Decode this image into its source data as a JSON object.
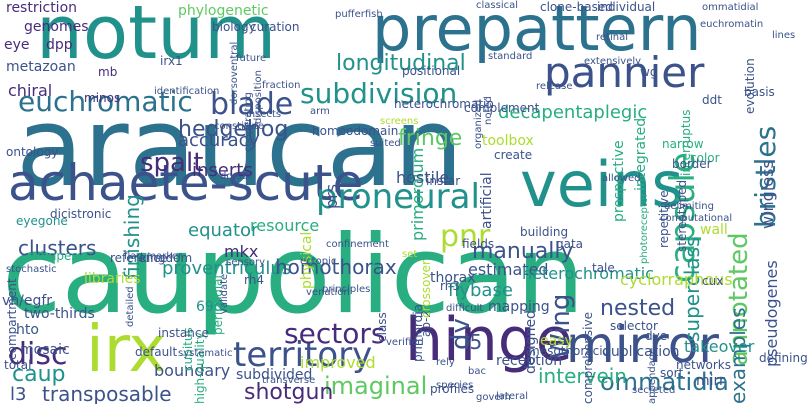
{
  "colors": {
    "purple_dark": "#440154",
    "purple": "#472c7a",
    "indigo": "#3b528b",
    "blue": "#2c728e",
    "teal": "#21918c",
    "green_teal": "#28ae80",
    "green": "#5ec962",
    "lime": "#addc30",
    "yellow": "#fde725"
  },
  "words": [
    {
      "text": "araucan",
      "color": "#2c728e",
      "r": 0
    },
    {
      "text": "caupolican",
      "color": "#28ae80",
      "r": 0
    },
    {
      "text": "notum",
      "color": "#21918c",
      "r": 0
    },
    {
      "text": "prepattern",
      "color": "#2c728e",
      "r": 0
    },
    {
      "text": "achaete-scute",
      "color": "#3b528b",
      "r": 0
    },
    {
      "text": "veins",
      "color": "#21918c",
      "r": 0
    },
    {
      "text": "hinge",
      "color": "#472c7a",
      "r": 0
    },
    {
      "text": "mirror",
      "color": "#3b528b",
      "r": 0
    },
    {
      "text": "irx",
      "color": "#addc30",
      "r": 0
    },
    {
      "text": "pannier",
      "color": "#3b528b",
      "r": 0
    },
    {
      "text": "euchromatic",
      "color": "#2c728e",
      "r": 0
    },
    {
      "text": "blade",
      "color": "#3b528b",
      "r": 0
    },
    {
      "text": "subdivision",
      "color": "#21918c",
      "r": 0
    },
    {
      "text": "capsule",
      "color": "#28ae80",
      "r": -90
    },
    {
      "text": "bristles",
      "color": "#2c728e",
      "r": -90
    },
    {
      "text": "annotated",
      "color": "#5ec962",
      "r": -90
    },
    {
      "text": "proneural",
      "color": "#21918c",
      "r": 0
    },
    {
      "text": "territory",
      "color": "#3b528b",
      "r": 0
    },
    {
      "text": "sectors",
      "color": "#472c7a",
      "r": 0
    },
    {
      "text": "disc",
      "color": "#472c7a",
      "r": 0
    },
    {
      "text": "caup",
      "color": "#21918c",
      "r": 0
    },
    {
      "text": "hedgehog",
      "color": "#3b528b",
      "r": 0
    },
    {
      "text": "spalt",
      "color": "#472c7a",
      "r": 0
    },
    {
      "text": "longitudinal",
      "color": "#21918c",
      "r": 0
    },
    {
      "text": "decapentaplegic",
      "color": "#28ae80",
      "r": 0
    },
    {
      "text": "Wing",
      "color": "#3b528b",
      "r": -90
    },
    {
      "text": "pnr",
      "color": "#addc30",
      "r": 0
    },
    {
      "text": "dv",
      "color": "#3b528b",
      "r": -90
    },
    {
      "text": "proventriculus",
      "color": "#21918c",
      "r": 0
    },
    {
      "text": "homothorax",
      "color": "#3b528b",
      "r": 0
    },
    {
      "text": "clusters",
      "color": "#3b528b",
      "r": 0
    },
    {
      "text": "finishing",
      "color": "#21918c",
      "r": -90
    },
    {
      "text": "fringe",
      "color": "#5ec962",
      "r": 0
    },
    {
      "text": "manually",
      "color": "#3b528b",
      "r": 0
    },
    {
      "text": "superclass",
      "color": "#21918c",
      "r": -90
    },
    {
      "text": "ommatidia",
      "color": "#2c728e",
      "r": 0
    },
    {
      "text": "imaginal",
      "color": "#5ec962",
      "r": 0
    },
    {
      "text": "shotgun",
      "color": "#472c7a",
      "r": 0
    },
    {
      "text": "transposable",
      "color": "#3b528b",
      "r": 0
    },
    {
      "text": "intervein",
      "color": "#28ae80",
      "r": 0
    },
    {
      "text": "equator",
      "color": "#21918c",
      "r": 0
    },
    {
      "text": "resource",
      "color": "#28ae80",
      "r": 0
    },
    {
      "text": "accuracy",
      "color": "#3b528b",
      "r": 0
    },
    {
      "text": "inserts",
      "color": "#472c7a",
      "r": 0
    },
    {
      "text": "primordium",
      "color": "#28ae80",
      "r": -90
    },
    {
      "text": "hostile",
      "color": "#3b528b",
      "r": 0
    },
    {
      "text": "nested",
      "color": "#3b528b",
      "r": 0
    },
    {
      "text": "examples",
      "color": "#2c728e",
      "r": -90
    },
    {
      "text": "wingless",
      "color": "#3b528b",
      "r": -90
    },
    {
      "text": "pseudogenes",
      "color": "#3b528b",
      "r": -90
    },
    {
      "text": "takeover",
      "color": "#21918c",
      "r": 0
    },
    {
      "text": "mkx",
      "color": "#472c7a",
      "r": 0
    },
    {
      "text": "l5",
      "color": "#3b528b",
      "r": 0
    },
    {
      "text": "l3",
      "color": "#3b528b",
      "r": 0
    },
    {
      "text": "boundary",
      "color": "#3b528b",
      "r": 0
    },
    {
      "text": "flybase",
      "color": "#21918c",
      "r": 0
    },
    {
      "text": "estimated",
      "color": "#3b528b",
      "r": 0
    },
    {
      "text": "heterochromatic",
      "color": "#21918c",
      "r": 0
    },
    {
      "text": "cyclorraphous",
      "color": "#addc30",
      "r": 0
    },
    {
      "text": "mirr",
      "color": "#3b528b",
      "r": 0
    },
    {
      "text": "subdivided",
      "color": "#3b528b",
      "r": 0
    },
    {
      "text": "improved",
      "color": "#addc30",
      "r": 0
    },
    {
      "text": "mapping",
      "color": "#3b528b",
      "r": 0
    },
    {
      "text": "eye",
      "color": "#472c7a",
      "r": 0
    },
    {
      "text": "dpp",
      "color": "#472c7a",
      "r": 0
    },
    {
      "text": "genomes",
      "color": "#472c7a",
      "r": 0
    },
    {
      "text": "restriction",
      "color": "#472c7a",
      "r": 0
    },
    {
      "text": "phylogenetic",
      "color": "#5ec962",
      "r": 0
    },
    {
      "text": "biology",
      "color": "#3b528b",
      "r": 0
    },
    {
      "text": "curation",
      "color": "#3b528b",
      "r": 0
    },
    {
      "text": "pufferfish",
      "color": "#3b528b",
      "r": 0
    },
    {
      "text": "clone-based",
      "color": "#3b528b",
      "r": 0
    },
    {
      "text": "classical",
      "color": "#3b528b",
      "r": 0
    },
    {
      "text": "individual",
      "color": "#3b528b",
      "r": 0
    },
    {
      "text": "ommatidial",
      "color": "#3b528b",
      "r": 0
    },
    {
      "text": "euchromatin",
      "color": "#3b528b",
      "r": 0
    },
    {
      "text": "metazoan",
      "color": "#3b528b",
      "r": 0
    },
    {
      "text": "chiral",
      "color": "#472c7a",
      "r": 0
    },
    {
      "text": "mb",
      "color": "#472c7a",
      "r": 0
    },
    {
      "text": "ontology",
      "color": "#3b528b",
      "r": 0
    },
    {
      "text": "compartment",
      "color": "#3b528b",
      "r": -90
    },
    {
      "text": "eyegone",
      "color": "#21918c",
      "r": 0
    },
    {
      "text": "dicistronic",
      "color": "#3b528b",
      "r": 0
    },
    {
      "text": "rubripes",
      "color": "#28ae80",
      "r": 0
    },
    {
      "text": "stochastic",
      "color": "#3b528b",
      "r": 0
    },
    {
      "text": "reference",
      "color": "#3b528b",
      "r": 0
    },
    {
      "text": "kingdom",
      "color": "#3b528b",
      "r": 0
    },
    {
      "text": "libraries",
      "color": "#addc30",
      "r": 0
    },
    {
      "text": "rh4",
      "color": "#3b528b",
      "r": 0
    },
    {
      "text": "vn/egfr",
      "color": "#3b528b",
      "r": 0
    },
    {
      "text": "two-thirds",
      "color": "#3b528b",
      "r": 0
    },
    {
      "text": "hto",
      "color": "#3b528b",
      "r": 0
    },
    {
      "text": "mosaic",
      "color": "#3b528b",
      "r": 0
    },
    {
      "text": "total",
      "color": "#3b528b",
      "r": 0
    },
    {
      "text": "69d",
      "color": "#21918c",
      "r": 0
    },
    {
      "text": "cubitus",
      "color": "#28ae80",
      "r": -90
    },
    {
      "text": "high-quality",
      "color": "#28ae80",
      "r": -90
    },
    {
      "text": "default",
      "color": "#3b528b",
      "r": 0
    },
    {
      "text": "prs",
      "color": "#3b528b",
      "r": -90
    },
    {
      "text": "physical",
      "color": "#addc30",
      "r": -90
    },
    {
      "text": "artificial",
      "color": "#3b528b",
      "r": -90
    },
    {
      "text": "thorax",
      "color": "#3b528b",
      "r": 0
    },
    {
      "text": "toolbox",
      "color": "#addc30",
      "r": 0
    },
    {
      "text": "repetitive",
      "color": "#3b528b",
      "r": -90
    },
    {
      "text": "stereotyped",
      "color": "#3b528b",
      "r": -90
    },
    {
      "text": "prospective",
      "color": "#28ae80",
      "r": -90
    },
    {
      "text": "integrated",
      "color": "#28ae80",
      "r": -90
    },
    {
      "text": "interruptus",
      "color": "#28ae80",
      "r": -90
    },
    {
      "text": "color",
      "color": "#28ae80",
      "r": 0
    },
    {
      "text": "narrow",
      "color": "#28ae80",
      "r": 0
    },
    {
      "text": "border",
      "color": "#3b528b",
      "r": 0
    },
    {
      "text": "wall",
      "color": "#addc30",
      "r": 0
    },
    {
      "text": "rh3",
      "color": "#3b528b",
      "r": 0
    },
    {
      "text": "tale",
      "color": "#3b528b",
      "r": 0
    },
    {
      "text": "dve",
      "color": "#3b528b",
      "r": 0
    },
    {
      "text": "reception",
      "color": "#3b528b",
      "r": 0
    },
    {
      "text": "mesothoracic",
      "color": "#3b528b",
      "r": 0
    },
    {
      "text": "duplication",
      "color": "#3b528b",
      "r": 0
    },
    {
      "text": "selector",
      "color": "#3b528b",
      "r": 0
    },
    {
      "text": "easy",
      "color": "#addc30",
      "r": 0
    },
    {
      "text": "comprehensive",
      "color": "#3b528b",
      "r": -90
    },
    {
      "text": "designed",
      "color": "#3b528b",
      "r": -90
    },
    {
      "text": "primordia",
      "color": "#3b528b",
      "r": -90
    },
    {
      "text": "class",
      "color": "#3b528b",
      "r": -90
    },
    {
      "text": "ap-2",
      "color": "#3b528b",
      "r": -90
    },
    {
      "text": "peripodial",
      "color": "#28ae80",
      "r": -90
    },
    {
      "text": "sensory",
      "color": "#3b528b",
      "r": 0
    },
    {
      "text": "crossover",
      "color": "#addc30",
      "r": -90
    },
    {
      "text": "gata",
      "color": "#3b528b",
      "r": 0
    },
    {
      "text": "cux",
      "color": "#3b528b",
      "r": 0
    },
    {
      "text": "wg",
      "color": "#3b528b",
      "r": 0
    },
    {
      "text": "basis",
      "color": "#3b528b",
      "r": 0
    },
    {
      "text": "ddt",
      "color": "#3b528b",
      "r": 0
    },
    {
      "text": "evolution",
      "color": "#3b528b",
      "r": -90
    },
    {
      "text": "minos",
      "color": "#472c7a",
      "r": 0
    },
    {
      "text": "irx1",
      "color": "#3b528b",
      "r": 0
    },
    {
      "text": "future",
      "color": "#3b528b",
      "r": 0
    },
    {
      "text": "dorsoventral",
      "color": "#3b528b",
      "r": -90
    },
    {
      "text": "disposition",
      "color": "#3b528b",
      "r": -90
    },
    {
      "text": "insects",
      "color": "#3b528b",
      "r": 0
    },
    {
      "text": "fraction",
      "color": "#3b528b",
      "r": 0
    },
    {
      "text": "positional",
      "color": "#3b528b",
      "r": 0
    },
    {
      "text": "standard",
      "color": "#3b528b",
      "r": 0
    },
    {
      "text": "create",
      "color": "#3b528b",
      "r": 0
    },
    {
      "text": "homeodomain",
      "color": "#3b528b",
      "r": 0
    },
    {
      "text": "instar",
      "color": "#3b528b",
      "r": 0
    },
    {
      "text": "confinement",
      "color": "#3b528b",
      "r": 0
    },
    {
      "text": "ectopic",
      "color": "#3b528b",
      "r": 0
    },
    {
      "text": "principles",
      "color": "#3b528b",
      "r": 0
    },
    {
      "text": "validate",
      "color": "#3b528b",
      "r": -90
    },
    {
      "text": "detailed",
      "color": "#3b528b",
      "r": -90
    },
    {
      "text": "instance",
      "color": "#3b528b",
      "r": 0
    },
    {
      "text": "venation",
      "color": "#3b528b",
      "r": 0
    },
    {
      "text": "verified",
      "color": "#3b528b",
      "r": 0
    },
    {
      "text": "difficult",
      "color": "#3b528b",
      "r": 0
    },
    {
      "text": "profiles",
      "color": "#3b528b",
      "r": 0
    },
    {
      "text": "lateral",
      "color": "#3b528b",
      "r": 0
    },
    {
      "text": "species",
      "color": "#3b528b",
      "r": 0
    },
    {
      "text": "govern",
      "color": "#3b528b",
      "r": 0
    },
    {
      "text": "bac",
      "color": "#3b528b",
      "r": 0
    },
    {
      "text": "secreted",
      "color": "#3b528b",
      "r": 0
    },
    {
      "text": "appendage",
      "color": "#3b528b",
      "r": -90
    },
    {
      "text": "sort",
      "color": "#3b528b",
      "r": 0
    },
    {
      "text": "networks",
      "color": "#3b528b",
      "r": 0
    },
    {
      "text": "defining",
      "color": "#3b528b",
      "r": 0
    },
    {
      "text": "photoreceptor",
      "color": "#28ae80",
      "r": -90
    },
    {
      "text": "computational",
      "color": "#3b528b",
      "r": 0
    },
    {
      "text": "delimiting",
      "color": "#3b528b",
      "r": 0
    },
    {
      "text": "allowed",
      "color": "#3b528b",
      "r": 0
    },
    {
      "text": "fields",
      "color": "#3b528b",
      "r": 0
    },
    {
      "text": "building",
      "color": "#3b528b",
      "r": 0
    },
    {
      "text": "constitute",
      "color": "#3b528b",
      "r": 0
    },
    {
      "text": "dorsal",
      "color": "#3b528b",
      "r": 0
    },
    {
      "text": "cooperating",
      "color": "#3b528b",
      "r": -90
    },
    {
      "text": "arm",
      "color": "#3b528b",
      "r": 0
    },
    {
      "text": "suited",
      "color": "#3b528b",
      "r": 0
    },
    {
      "text": "screens",
      "color": "#addc30",
      "r": 0
    },
    {
      "text": "heterochromatin",
      "color": "#3b528b",
      "r": 0
    },
    {
      "text": "organized",
      "color": "#3b528b",
      "r": -90
    },
    {
      "text": "noted",
      "color": "#3b528b",
      "r": -90
    },
    {
      "text": "release",
      "color": "#3b528b",
      "r": 0
    },
    {
      "text": "extensively",
      "color": "#3b528b",
      "r": 0
    },
    {
      "text": "retinal",
      "color": "#3b528b",
      "r": 0
    },
    {
      "text": "lines",
      "color": "#3b528b",
      "r": 0
    },
    {
      "text": "identification",
      "color": "#3b528b",
      "r": 0
    },
    {
      "text": "complement",
      "color": "#3b528b",
      "r": 0
    },
    {
      "text": "flag-marker",
      "color": "#3b528b",
      "r": 0
    },
    {
      "text": "set",
      "color": "#addc30",
      "r": 0
    },
    {
      "text": "systematic",
      "color": "#3b528b",
      "r": 0
    },
    {
      "text": "transverse",
      "color": "#3b528b",
      "r": 0
    },
    {
      "text": "rely",
      "color": "#3b528b",
      "r": 0
    }
  ]
}
